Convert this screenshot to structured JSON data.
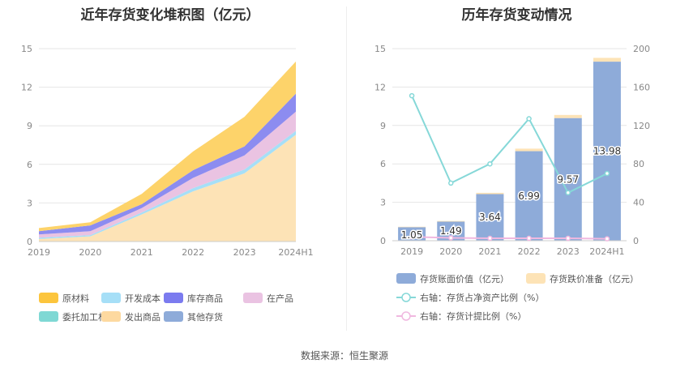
{
  "chart_data": [
    {
      "type": "area",
      "title": "近年存货变化堆积图（亿元）",
      "categories": [
        "2019",
        "2020",
        "2021",
        "2022",
        "2023",
        "2024H1"
      ],
      "ylim": [
        0,
        15
      ],
      "yticks": [
        "0",
        "3",
        "6",
        "9",
        "12",
        "15"
      ],
      "series": [
        {
          "name": "发出商品",
          "color": "#fde3b6",
          "values": [
            0.2,
            0.4,
            2.1,
            3.9,
            5.3,
            8.3
          ]
        },
        {
          "name": "委托加工材料",
          "color": "#7fd8d4",
          "values": [
            0.0,
            0.0,
            0.0,
            0.0,
            0.0,
            0.0
          ]
        },
        {
          "name": "开发成本",
          "color": "#a6dff7",
          "values": [
            0.1,
            0.1,
            0.15,
            0.25,
            0.3,
            0.3
          ]
        },
        {
          "name": "在产品",
          "color": "#eac3e2",
          "values": [
            0.25,
            0.3,
            0.35,
            0.8,
            1.1,
            1.5
          ]
        },
        {
          "name": "库存商品",
          "color": "#8c8cf0",
          "values": [
            0.25,
            0.45,
            0.3,
            0.6,
            0.7,
            1.4
          ]
        },
        {
          "name": "其他存货",
          "color": "#8eabd9",
          "values": [
            0.0,
            0.0,
            0.0,
            0.0,
            0.0,
            0.0
          ]
        },
        {
          "name": "原材料",
          "color": "#fdd36a",
          "values": [
            0.25,
            0.25,
            0.8,
            1.45,
            2.3,
            2.5
          ]
        }
      ],
      "legend": [
        {
          "name": "原材料",
          "color": "#fcc53d"
        },
        {
          "name": "开发成本",
          "color": "#a6dff7"
        },
        {
          "name": "库存商品",
          "color": "#7b7bef"
        },
        {
          "name": "在产品",
          "color": "#eac3e2"
        },
        {
          "name": "委托加工材料",
          "color": "#7fd8d4"
        },
        {
          "name": "发出商品",
          "color": "#fdd9a0"
        },
        {
          "name": "其他存货",
          "color": "#8eabd9"
        }
      ]
    },
    {
      "type": "bar+line",
      "title": "历年存货变动情况",
      "categories": [
        "2019",
        "2020",
        "2021",
        "2022",
        "2023",
        "2024H1"
      ],
      "left_ylim": [
        0,
        15
      ],
      "left_yticks": [
        "0",
        "3",
        "6",
        "9",
        "12",
        "15"
      ],
      "right_ylim": [
        0,
        200
      ],
      "right_yticks": [
        "0",
        "40",
        "80",
        "120",
        "160",
        "200"
      ],
      "bars": {
        "name": "存货账面价值（亿元）",
        "color": "#8eabd9",
        "values": [
          1.05,
          1.49,
          3.64,
          6.99,
          9.57,
          13.98
        ],
        "labels": [
          "1.05",
          "1.49",
          "3.64",
          "6.99",
          "9.57",
          "13.98"
        ]
      },
      "bars_top": {
        "name": "存货跌价准备（亿元）",
        "color": "#fde3b6",
        "values": [
          0.04,
          0.05,
          0.1,
          0.2,
          0.25,
          0.3
        ]
      },
      "line1": {
        "name": "右轴：存货占净资产比例（%）",
        "color": "#86d8d8",
        "values": [
          151,
          60,
          80,
          127,
          50,
          70
        ]
      },
      "line2": {
        "name": "右轴：存货计提比例（%）",
        "color": "#f0b8e0",
        "values": [
          4,
          3,
          2.5,
          2.5,
          2.5,
          2
        ]
      }
    }
  ],
  "source": "数据来源：恒生聚源"
}
